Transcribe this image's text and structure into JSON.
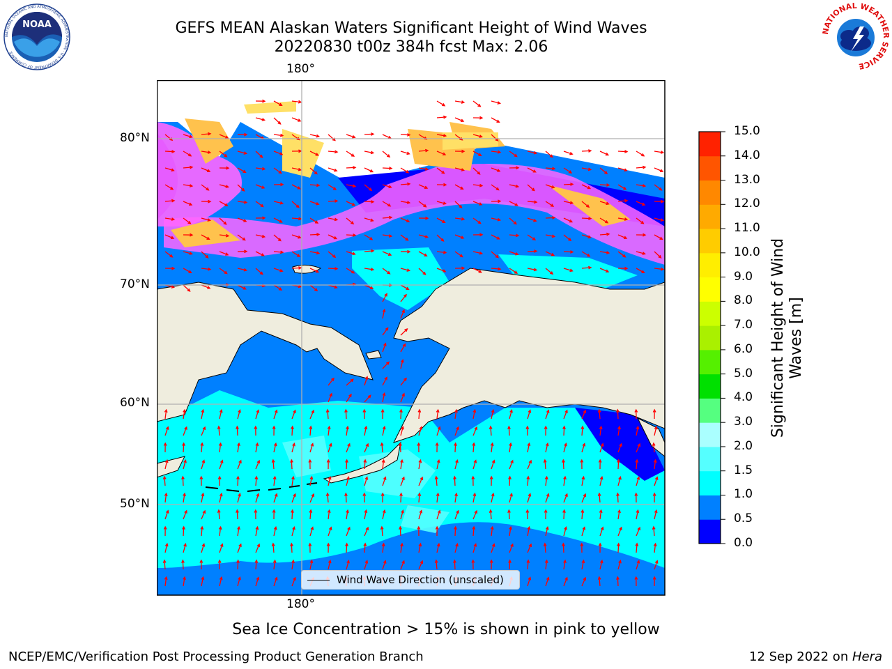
{
  "title": {
    "line1": "GEFS MEAN Alaskan Waters Significant Height of Wind Waves",
    "line2": "20220830 t00z 384h fcst   Max: 2.06"
  },
  "logos": {
    "noaa": {
      "text": "NOAA",
      "ring_text": "NATIONAL OCEANIC AND ATMOSPHERIC ADMINISTRATION · U.S. DEPARTMENT OF COMMERCE"
    },
    "nws": {
      "ring_text": "NATIONAL WEATHER SERVICE"
    }
  },
  "map": {
    "lon_labels": {
      "top": "180°",
      "bottom": "180°"
    },
    "lat_labels": [
      "80°N",
      "70°N",
      "60°N",
      "50°N"
    ],
    "land_color": "#efedde",
    "ice_colors": [
      "#ff66ff",
      "#ffc24d",
      "#ffe066"
    ],
    "arrow_color": "#ff0000",
    "legend": {
      "label": "Wind Wave Direction (unscaled)"
    }
  },
  "colorbar": {
    "title": "Significant Height of Wind Waves [m]",
    "ticks": [
      "15.0",
      "14.0",
      "13.0",
      "12.0",
      "11.0",
      "10.0",
      "9.0",
      "8.0",
      "7.0",
      "6.0",
      "5.0",
      "4.0",
      "3.0",
      "2.0",
      "1.5",
      "1.0",
      "0.5",
      "0.0"
    ],
    "colors": [
      "#0000ff",
      "#0080ff",
      "#00ffff",
      "#55ffff",
      "#aaffff",
      "#55ff80",
      "#00e000",
      "#55f000",
      "#aaf000",
      "#ccff00",
      "#ffff00",
      "#ffee00",
      "#ffcc00",
      "#ffaa00",
      "#ff8800",
      "#ff5500",
      "#ff2200"
    ]
  },
  "caption": "Sea Ice Concentration > 15% is shown in pink to yellow",
  "footer": {
    "left": "NCEP/EMC/Verification Post Processing Product Generation Branch",
    "right_date": "12 Sep 2022 on ",
    "right_host": "Hera"
  }
}
